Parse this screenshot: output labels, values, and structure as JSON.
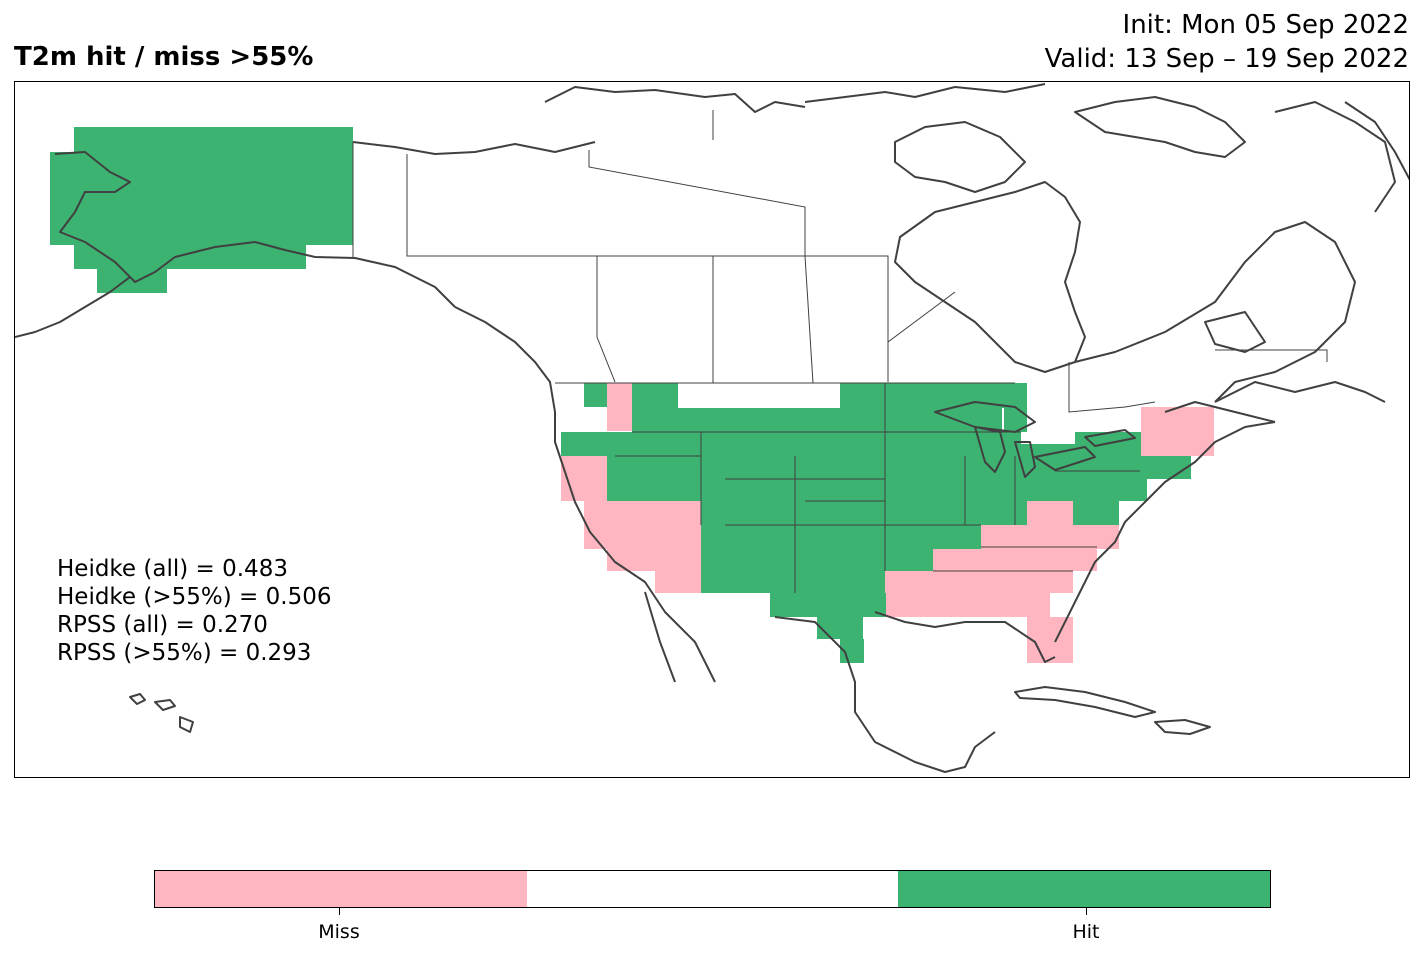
{
  "title": "T2m hit / miss  >55%",
  "init_line": "Init: Mon 05 Sep 2022",
  "valid_line": "Valid: 13 Sep – 19 Sep 2022",
  "stats": [
    "Heidke (all) = 0.483",
    "Heidke (>55%) = 0.506",
    "RPSS (all) = 0.270",
    "RPSS (>55%) = 0.293"
  ],
  "colors": {
    "miss": "#ffb6c1",
    "neutral": "#ffffff",
    "hit": "#3cb371",
    "coast": "#404040"
  },
  "colorbar": {
    "segments": [
      "miss",
      "neutral",
      "hit"
    ],
    "labels": [
      "Miss",
      "Hit"
    ]
  }
}
